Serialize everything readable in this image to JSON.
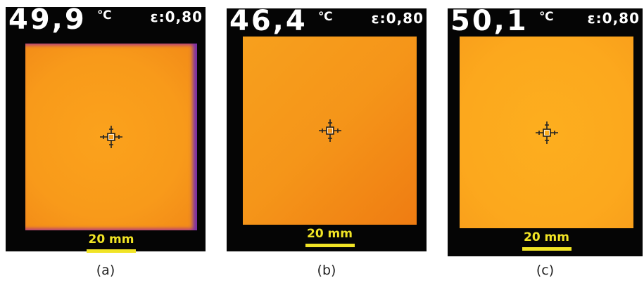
{
  "panels": [
    {
      "temperature": "49,9",
      "unit": "℃",
      "emissivity": "ε:0,80",
      "scale": "20 mm",
      "caption": "(a)"
    },
    {
      "temperature": "46,4",
      "unit": "℃",
      "emissivity": "ε:0,80",
      "scale": "20 mm",
      "caption": "(b)"
    },
    {
      "temperature": "50,1",
      "unit": "℃",
      "emissivity": "ε:0,80",
      "scale": "20 mm",
      "caption": "(c)"
    }
  ]
}
